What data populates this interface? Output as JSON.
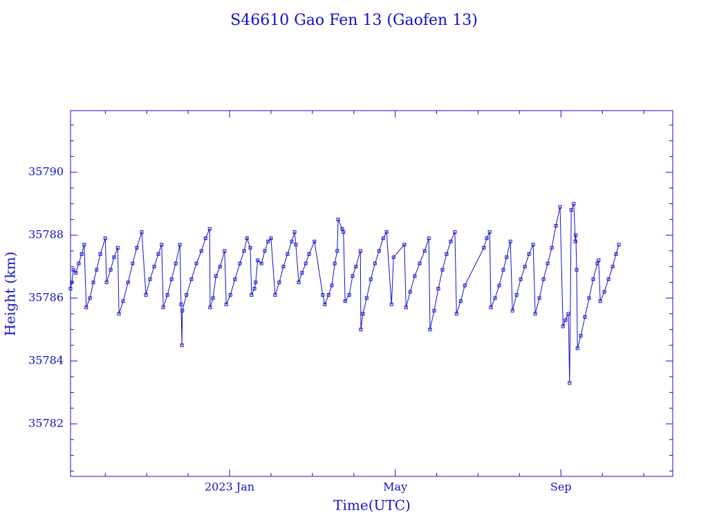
{
  "chart_data": {
    "type": "line",
    "title": "S46610 Gao Fen 13  (Gaofen 13)",
    "xlabel": "Time(UTC)",
    "ylabel": "Height (km)",
    "color": "#1010cc",
    "marker": "square",
    "grid": false,
    "xlim": [
      -3.84,
      10.7
    ],
    "xticks": [
      {
        "value": 0,
        "label": "2023 Jan"
      },
      {
        "value": 4,
        "label": "May"
      },
      {
        "value": 8,
        "label": "Sep"
      }
    ],
    "xminorticks": [
      -3,
      -2,
      -1,
      1,
      2,
      3,
      5,
      6,
      7,
      9,
      10
    ],
    "ylim": [
      35780.33,
      35791.96
    ],
    "yticks": [
      35782,
      35784,
      35786,
      35788,
      35790
    ],
    "yminorticks": [
      35780.5,
      35781,
      35781.5,
      35782.5,
      35783,
      35783.5,
      35784.5,
      35785,
      35785.5,
      35786.5,
      35787,
      35787.5,
      35788.5,
      35789,
      35789.5,
      35790.5,
      35791,
      35791.5
    ],
    "x": [
      -3.84,
      -3.81,
      -3.77,
      -3.71,
      -3.64,
      -3.57,
      -3.51,
      -3.46,
      -3.37,
      -3.29,
      -3.21,
      -3.12,
      -3.0,
      -2.97,
      -2.87,
      -2.79,
      -2.7,
      -2.67,
      -2.57,
      -2.45,
      -2.34,
      -2.24,
      -2.12,
      -2.02,
      -1.92,
      -1.82,
      -1.72,
      -1.64,
      -1.6,
      -1.5,
      -1.4,
      -1.3,
      -1.2,
      -1.17,
      -1.15,
      -1.14,
      -1.04,
      -0.92,
      -0.8,
      -0.68,
      -0.58,
      -0.48,
      -0.47,
      -0.4,
      -0.33,
      -0.23,
      -0.12,
      -0.08,
      0.02,
      0.13,
      0.25,
      0.35,
      0.42,
      0.5,
      0.53,
      0.6,
      0.63,
      0.68,
      0.77,
      0.85,
      0.93,
      1.0,
      1.1,
      1.2,
      1.3,
      1.4,
      1.5,
      1.57,
      1.6,
      1.67,
      1.75,
      1.84,
      1.92,
      2.05,
      2.25,
      2.3,
      2.39,
      2.47,
      2.54,
      2.6,
      2.62,
      2.72,
      2.75,
      2.79,
      2.89,
      2.97,
      3.05,
      3.16,
      3.17,
      3.22,
      3.31,
      3.41,
      3.51,
      3.61,
      3.71,
      3.79,
      3.91,
      3.96,
      4.22,
      4.26,
      4.36,
      4.47,
      4.59,
      4.71,
      4.81,
      4.84,
      4.94,
      5.04,
      5.14,
      5.24,
      5.34,
      5.44,
      5.48,
      5.58,
      5.68,
      6.14,
      6.21,
      6.28,
      6.31,
      6.41,
      6.51,
      6.61,
      6.69,
      6.78,
      6.83,
      6.93,
      7.03,
      7.13,
      7.23,
      7.33,
      7.38,
      7.48,
      7.58,
      7.68,
      7.78,
      7.88,
      7.98,
      8.05,
      8.11,
      8.18,
      8.21,
      8.25,
      8.31,
      8.35,
      8.36,
      8.38,
      8.4,
      8.48,
      8.58,
      8.68,
      8.78,
      8.88,
      8.91,
      8.95,
      9.05,
      9.15,
      9.25,
      9.33,
      9.4
    ],
    "values": [
      35786.3,
      35786.5,
      35786.9,
      35786.8,
      35787.1,
      35787.4,
      35787.7,
      35785.7,
      35786.0,
      35786.5,
      35786.9,
      35787.4,
      35787.9,
      35786.5,
      35786.9,
      35787.3,
      35787.6,
      35785.5,
      35785.9,
      35786.5,
      35787.1,
      35787.6,
      35788.1,
      35786.1,
      35786.6,
      35787.0,
      35787.4,
      35787.7,
      35785.7,
      35786.1,
      35786.6,
      35787.1,
      35787.7,
      35785.8,
      35784.5,
      35785.6,
      35786.1,
      35786.6,
      35787.1,
      35787.5,
      35787.9,
      35788.2,
      35785.7,
      35786.0,
      35786.7,
      35787.0,
      35787.5,
      35785.8,
      35786.1,
      35786.6,
      35787.1,
      35787.5,
      35787.9,
      35787.6,
      35786.1,
      35786.3,
      35786.5,
      35787.2,
      35787.1,
      35787.5,
      35787.8,
      35787.9,
      35786.1,
      35786.5,
      35787.0,
      35787.4,
      35787.8,
      35788.1,
      35787.7,
      35786.5,
      35786.8,
      35787.1,
      35787.4,
      35787.8,
      35786.1,
      35785.8,
      35786.1,
      35786.4,
      35787.1,
      35787.5,
      35788.5,
      35788.2,
      35788.1,
      35785.9,
      35786.1,
      35786.7,
      35787.0,
      35787.5,
      35785.0,
      35785.5,
      35786.0,
      35786.6,
      35787.1,
      35787.5,
      35787.9,
      35788.1,
      35785.8,
      35787.3,
      35787.7,
      35785.7,
      35786.2,
      35786.7,
      35787.1,
      35787.5,
      35787.9,
      35785.0,
      35785.6,
      35786.3,
      35786.9,
      35787.4,
      35787.8,
      35788.1,
      35785.5,
      35785.9,
      35786.4,
      35787.6,
      35787.9,
      35788.1,
      35785.7,
      35786.0,
      35786.4,
      35786.9,
      35787.3,
      35787.8,
      35785.6,
      35786.1,
      35786.6,
      35787.0,
      35787.4,
      35787.7,
      35785.5,
      35786.0,
      35786.6,
      35787.1,
      35787.6,
      35788.3,
      35788.9,
      35785.1,
      35785.3,
      35785.5,
      35783.3,
      35788.8,
      35789.0,
      35787.8,
      35788.0,
      35786.9,
      35784.4,
      35784.8,
      35785.4,
      35786.0,
      35786.6,
      35787.1,
      35787.2,
      35785.9,
      35786.2,
      35786.6,
      35787.0,
      35787.4,
      35787.7
    ]
  }
}
